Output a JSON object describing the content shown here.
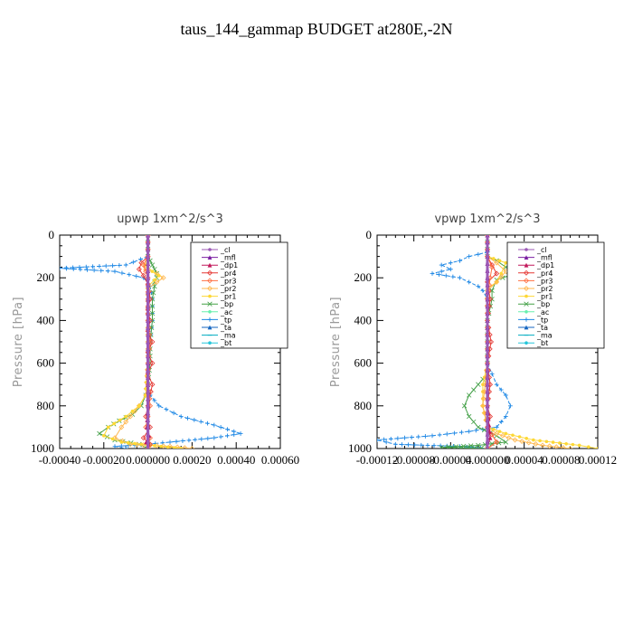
{
  "title": "taus_144_gammap  BUDGET at280E,-2N",
  "legend_entries": [
    {
      "name": "_cl",
      "color": "#9b59b6",
      "marker": "circle"
    },
    {
      "name": "_mfl",
      "color": "#7b1fa2",
      "marker": "tri"
    },
    {
      "name": "_dp1",
      "color": "#c2185b",
      "marker": "tri"
    },
    {
      "name": "_pr4",
      "color": "#e53935",
      "marker": "diamond"
    },
    {
      "name": "_pr3",
      "color": "#ff7043",
      "marker": "diamond"
    },
    {
      "name": "_pr2",
      "color": "#ffb74d",
      "marker": "diamond"
    },
    {
      "name": "_pr1",
      "color": "#fdd835",
      "marker": "circle"
    },
    {
      "name": "_bp",
      "color": "#43a047",
      "marker": "x"
    },
    {
      "name": "_ac",
      "color": "#69f0ae",
      "marker": "circle"
    },
    {
      "name": "_tp",
      "color": "#1e88e5",
      "marker": "plus"
    },
    {
      "name": "_ta",
      "color": "#1565c0",
      "marker": "tri"
    },
    {
      "name": "_ma",
      "color": "#00acc1",
      "marker": "dash"
    },
    {
      "name": "_bt",
      "color": "#26c6da",
      "marker": "circle"
    }
  ],
  "chart_data": [
    {
      "type": "line",
      "title": "upwp   1xm^2/s^3",
      "ylabel": "Pressure [hPa]",
      "xlabel": "",
      "xlim": [
        -0.0004,
        0.0006
      ],
      "ylim": [
        0,
        1000
      ],
      "y_inverted": true,
      "xticks": [
        "-0.00040",
        "-0.00020",
        "0.000000",
        "0.00020",
        "0.00040",
        "0.00060"
      ],
      "yticks": [
        "0",
        "200",
        "400",
        "600",
        "800",
        "1000"
      ],
      "legend_position": "top-right",
      "series": [
        {
          "name": "_tp",
          "color": "#1e88e5",
          "x": [
            0,
            0,
            -0.0001,
            -0.0004,
            -0.00015,
            -2e-05,
            1e-05,
            2e-05,
            2e-05,
            1e-05,
            0,
            0,
            1e-05,
            5e-05,
            0.00015,
            0.0003,
            0.00042,
            0.0003,
            0.0001,
            0,
            -0.00015,
            -0.0001
          ],
          "y": [
            0,
            100,
            140,
            155,
            170,
            200,
            240,
            300,
            400,
            500,
            600,
            700,
            750,
            800,
            850,
            890,
            930,
            950,
            970,
            980,
            990,
            1000
          ]
        },
        {
          "name": "_bp",
          "color": "#43a047",
          "x": [
            0,
            0,
            1e-05,
            2e-05,
            3e-05,
            4e-05,
            4e-05,
            3e-05,
            3e-05,
            2e-05,
            2e-05,
            1e-05,
            1e-05,
            0,
            -1e-05,
            -3e-05,
            -7e-05,
            -0.00013,
            -0.00018,
            -0.00022,
            -0.00015,
            -4e-05,
            0
          ],
          "y": [
            0,
            100,
            120,
            140,
            160,
            180,
            200,
            220,
            240,
            300,
            400,
            500,
            600,
            700,
            750,
            800,
            840,
            870,
            900,
            930,
            960,
            980,
            1000
          ]
        },
        {
          "name": "_pr2",
          "color": "#ffb74d",
          "x": [
            0,
            0,
            -2e-05,
            -1e-05,
            4e-05,
            7e-05,
            4e-05,
            0,
            0,
            0,
            -1e-05,
            -4e-05,
            -8e-05,
            -0.00012,
            -0.00015,
            -8e-05,
            0.0001,
            0.0002
          ],
          "y": [
            0,
            100,
            140,
            160,
            180,
            200,
            220,
            250,
            400,
            600,
            750,
            800,
            850,
            900,
            950,
            980,
            990,
            1000
          ]
        },
        {
          "name": "_pr1",
          "color": "#fdd835",
          "x": [
            0,
            0,
            -1e-05,
            2e-05,
            5e-05,
            3e-05,
            0,
            0,
            0,
            -1e-05,
            -4e-05,
            -0.0001,
            -0.00018,
            -0.0002,
            -0.00012,
            6e-05,
            0.00015
          ],
          "y": [
            0,
            100,
            140,
            170,
            190,
            210,
            240,
            400,
            600,
            750,
            800,
            850,
            900,
            940,
            970,
            990,
            1000
          ]
        },
        {
          "name": "_pr4",
          "color": "#e53935",
          "x": [
            0,
            0,
            -3e-05,
            -4e-05,
            -2e-05,
            0,
            1e-05,
            0,
            1e-05,
            0,
            2e-05,
            0,
            2e-05,
            0,
            2e-05,
            0,
            -1e-05,
            1e-05,
            -2e-05,
            1e-05,
            0
          ],
          "y": [
            0,
            100,
            130,
            160,
            190,
            230,
            300,
            350,
            400,
            450,
            500,
            550,
            600,
            650,
            700,
            800,
            850,
            900,
            950,
            980,
            1000
          ]
        },
        {
          "name": "_pr3",
          "color": "#ff7043",
          "x": [
            0,
            0,
            -2e-05,
            -1e-05,
            0,
            0,
            0,
            1e-05,
            0,
            0,
            1e-05,
            0,
            -1e-05,
            1e-05,
            0
          ],
          "y": [
            0,
            100,
            140,
            170,
            200,
            300,
            400,
            500,
            600,
            700,
            800,
            850,
            900,
            950,
            1000
          ]
        },
        {
          "name": "_dp1",
          "color": "#c2185b",
          "x": [
            0,
            0,
            0,
            0,
            0,
            -5e-06,
            5e-06,
            -8e-06,
            0
          ],
          "y": [
            0,
            200,
            400,
            600,
            800,
            900,
            940,
            970,
            1000
          ]
        },
        {
          "name": "_mfl",
          "color": "#7b1fa2",
          "x": [
            0,
            0,
            0,
            0,
            0,
            0
          ],
          "y": [
            0,
            200,
            400,
            600,
            800,
            1000
          ]
        },
        {
          "name": "_cl",
          "color": "#9b59b6",
          "x": [
            0,
            0,
            0,
            0,
            0,
            0
          ],
          "y": [
            0,
            200,
            400,
            600,
            800,
            1000
          ]
        }
      ]
    },
    {
      "type": "line",
      "title": "vpwp   1xm^2/s^3",
      "ylabel": "Pressure [hPa]",
      "xlabel": "",
      "xlim": [
        -0.00012,
        0.00012
      ],
      "ylim": [
        0,
        1000
      ],
      "y_inverted": true,
      "xticks": [
        "-0.00012",
        "-0.00008",
        "-0.00004",
        "0.000000",
        "0.00004",
        "0.00008",
        "0.00012"
      ],
      "yticks": [
        "0",
        "200",
        "400",
        "600",
        "800",
        "1000"
      ],
      "legend_position": "top-right",
      "series": [
        {
          "name": "_tp",
          "color": "#1e88e5",
          "x": [
            0,
            0,
            -2e-05,
            -3e-05,
            -5e-05,
            -4e-05,
            -6e-05,
            -3e-05,
            -2e-05,
            -1e-05,
            -5e-06,
            0,
            0,
            0,
            0,
            5e-06,
            1e-05,
            2e-05,
            2.5e-05,
            2e-05,
            1e-05,
            -2e-05,
            -6e-05,
            -0.00012,
            -0.0001,
            -3e-05,
            0
          ],
          "y": [
            0,
            80,
            100,
            120,
            140,
            160,
            180,
            200,
            220,
            240,
            260,
            300,
            400,
            500,
            600,
            650,
            700,
            750,
            800,
            850,
            900,
            920,
            940,
            960,
            980,
            990,
            1000
          ]
        },
        {
          "name": "_bp",
          "color": "#43a047",
          "x": [
            0,
            0,
            1e-05,
            2e-05,
            3e-05,
            1e-05,
            5e-06,
            5e-06,
            0,
            0,
            0,
            -1e-05,
            -2e-05,
            -2.5e-05,
            -2e-05,
            -1e-05,
            1e-05,
            2e-05,
            -1e-05,
            -5e-05,
            0
          ],
          "y": [
            0,
            100,
            120,
            150,
            180,
            210,
            260,
            300,
            400,
            600,
            650,
            700,
            750,
            800,
            850,
            900,
            940,
            970,
            985,
            995,
            1000
          ]
        },
        {
          "name": "_pr1",
          "color": "#fdd835",
          "x": [
            0,
            0,
            2e-05,
            1.5e-05,
            1e-05,
            0,
            0,
            0,
            -5e-06,
            -5e-06,
            0,
            2e-05,
            5e-05,
            0.0001,
            0.00012
          ],
          "y": [
            0,
            100,
            130,
            180,
            220,
            250,
            400,
            600,
            700,
            800,
            900,
            930,
            960,
            985,
            1000
          ]
        },
        {
          "name": "_pr2",
          "color": "#ffb74d",
          "x": [
            0,
            0,
            1e-05,
            2e-05,
            1e-05,
            0,
            0,
            0,
            -5e-06,
            0,
            1e-05,
            3e-05,
            6e-05,
            9e-05
          ],
          "y": [
            0,
            100,
            130,
            170,
            220,
            260,
            400,
            600,
            800,
            900,
            930,
            960,
            985,
            1000
          ]
        },
        {
          "name": "_pr4",
          "color": "#e53935",
          "x": [
            0,
            0,
            5e-06,
            1e-05,
            0,
            3e-06,
            0,
            4e-06,
            0,
            3e-06,
            0,
            3e-06,
            0,
            1e-05,
            0
          ],
          "y": [
            0,
            100,
            140,
            180,
            220,
            300,
            400,
            500,
            600,
            700,
            800,
            850,
            900,
            970,
            1000
          ]
        },
        {
          "name": "_pr3",
          "color": "#ff7043",
          "x": [
            0,
            0,
            5e-06,
            3e-06,
            0,
            0,
            0,
            0,
            1e-05,
            0
          ],
          "y": [
            0,
            100,
            150,
            200,
            300,
            500,
            700,
            900,
            970,
            1000
          ]
        },
        {
          "name": "_dp1",
          "color": "#c2185b",
          "x": [
            0,
            0,
            0,
            0,
            0,
            3e-06,
            0
          ],
          "y": [
            0,
            200,
            400,
            600,
            800,
            950,
            1000
          ]
        },
        {
          "name": "_mfl",
          "color": "#7b1fa2",
          "x": [
            0,
            0,
            0,
            0,
            0,
            0
          ],
          "y": [
            0,
            200,
            400,
            600,
            800,
            1000
          ]
        },
        {
          "name": "_cl",
          "color": "#9b59b6",
          "x": [
            0,
            0,
            0,
            0,
            0,
            0
          ],
          "y": [
            0,
            200,
            400,
            600,
            800,
            1000
          ]
        }
      ]
    }
  ]
}
